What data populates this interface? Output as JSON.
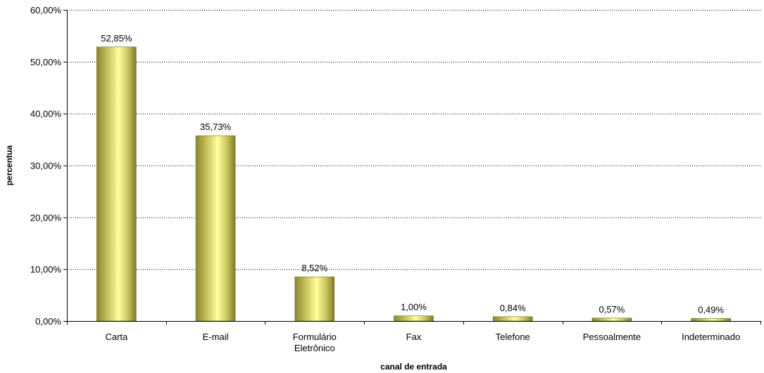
{
  "chart_data": {
    "type": "bar",
    "categories": [
      [
        "Carta"
      ],
      [
        "E-mail"
      ],
      [
        "Formulário",
        "Eletrônico"
      ],
      [
        "Fax"
      ],
      [
        "Telefone"
      ],
      [
        "Pessoalmente"
      ],
      [
        "Indeterminado"
      ]
    ],
    "values": [
      52.85,
      35.73,
      8.52,
      1.0,
      0.84,
      0.57,
      0.49
    ],
    "data_labels": [
      "52,85%",
      "35,73%",
      "8,52%",
      "1,00%",
      "0,84%",
      "0,57%",
      "0,49%"
    ],
    "yticks": [
      0,
      10,
      20,
      30,
      40,
      50,
      60
    ],
    "ytick_labels": [
      "0,00%",
      "10,00%",
      "20,00%",
      "30,00%",
      "40,00%",
      "50,00%",
      "60,00%"
    ],
    "ylim": [
      0,
      60
    ],
    "xlabel": "canal de entrada",
    "ylabel": "percentua",
    "grid": true,
    "legend": "none",
    "bar_color": "#c9c45a",
    "bar_highlight": "#ffff99",
    "bar_shadow": "#7d7a2a"
  }
}
